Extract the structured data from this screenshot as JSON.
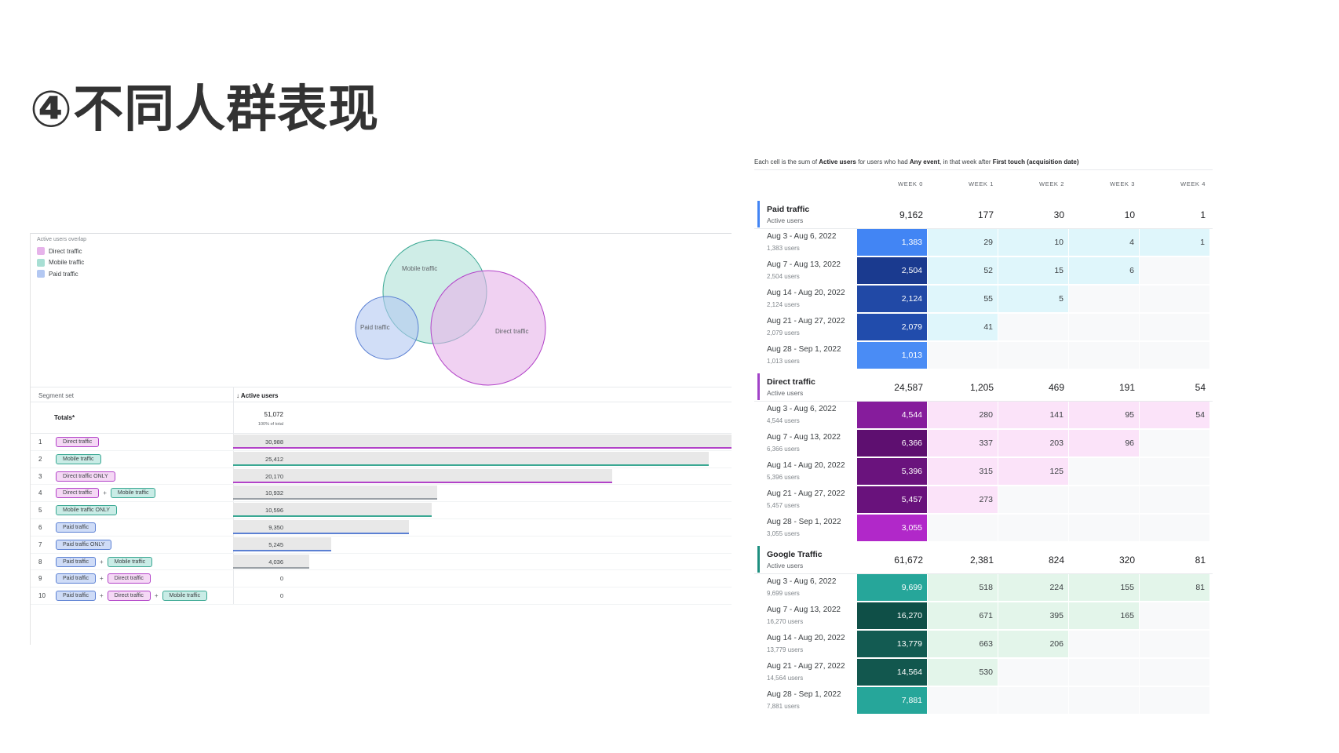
{
  "page_title": "④不同人群表现",
  "overlap": {
    "caption": "Active users overlap",
    "legend": [
      {
        "label": "Direct traffic",
        "color": "#e6b3ea"
      },
      {
        "label": "Mobile traffic",
        "color": "#a8dfd4"
      },
      {
        "label": "Paid traffic",
        "color": "#b3c8f2"
      }
    ],
    "venn_labels": {
      "mobile": "Mobile traffic",
      "paid": "Paid traffic",
      "direct": "Direct traffic"
    },
    "table": {
      "col_segment": "Segment set",
      "col_metric": "↓ Active users",
      "totals_label": "Totals*",
      "totals_value": "51,072",
      "totals_sub": "100% of total",
      "rows": [
        {
          "num": "1",
          "chips": [
            {
              "label": "Direct traffic",
              "kind": "direct"
            }
          ],
          "value": "30,988",
          "bar_frac": 1.0,
          "line": "#b242c8"
        },
        {
          "num": "2",
          "chips": [
            {
              "label": "Mobile traffic",
              "kind": "mobile"
            }
          ],
          "value": "25,412",
          "bar_frac": 0.955,
          "line": "#3aa893"
        },
        {
          "num": "3",
          "chips": [
            {
              "label": "Direct traffic ONLY",
              "kind": "direct"
            }
          ],
          "value": "20,170",
          "bar_frac": 0.76,
          "line": "#b242c8"
        },
        {
          "num": "4",
          "chips": [
            {
              "label": "Direct traffic",
              "kind": "direct"
            },
            {
              "label": "Mobile traffic",
              "kind": "mobile"
            }
          ],
          "value": "10,932",
          "bar_frac": 0.41,
          "line": "#9aa0a6"
        },
        {
          "num": "5",
          "chips": [
            {
              "label": "Mobile traffic ONLY",
              "kind": "mobile"
            }
          ],
          "value": "10,596",
          "bar_frac": 0.398,
          "line": "#3aa893"
        },
        {
          "num": "6",
          "chips": [
            {
              "label": "Paid traffic",
              "kind": "paid"
            }
          ],
          "value": "9,350",
          "bar_frac": 0.352,
          "line": "#5b80d3"
        },
        {
          "num": "7",
          "chips": [
            {
              "label": "Paid traffic ONLY",
              "kind": "paid"
            }
          ],
          "value": "5,245",
          "bar_frac": 0.197,
          "line": "#5b80d3"
        },
        {
          "num": "8",
          "chips": [
            {
              "label": "Paid traffic",
              "kind": "paid"
            },
            {
              "label": "Mobile traffic",
              "kind": "mobile"
            }
          ],
          "value": "4,036",
          "bar_frac": 0.152,
          "line": "#9aa0a6"
        },
        {
          "num": "9",
          "chips": [
            {
              "label": "Paid traffic",
              "kind": "paid"
            },
            {
              "label": "Direct traffic",
              "kind": "direct"
            }
          ],
          "value": "0",
          "bar_frac": 0,
          "line": ""
        },
        {
          "num": "10",
          "chips": [
            {
              "label": "Paid traffic",
              "kind": "paid"
            },
            {
              "label": "Direct traffic",
              "kind": "direct"
            },
            {
              "label": "Mobile traffic",
              "kind": "mobile"
            }
          ],
          "value": "0",
          "bar_frac": 0,
          "line": ""
        }
      ],
      "plus": "+"
    }
  },
  "cohort": {
    "caption_parts": [
      "Each cell is the sum of ",
      "Active users",
      " for users who had ",
      "Any event",
      ", in that week after ",
      "First touch (acquisition date)"
    ],
    "weeks": [
      "WEEK 0",
      "WEEK 1",
      "WEEK 2",
      "WEEK 3",
      "WEEK 4"
    ],
    "groups": [
      {
        "name": "Paid traffic",
        "sub": "Active users",
        "bar": "#4285f4",
        "totals": [
          "9,162",
          "177",
          "30",
          "10",
          "1"
        ],
        "light": "#dff6fb",
        "rows": [
          {
            "label": "Aug 3 - Aug 6, 2022",
            "sub": "1,383 users",
            "cells": [
              "1,383",
              "29",
              "10",
              "4",
              "1"
            ],
            "w0": "#4285f4"
          },
          {
            "label": "Aug 7 - Aug 13, 2022",
            "sub": "2,504 users",
            "cells": [
              "2,504",
              "52",
              "15",
              "6",
              ""
            ],
            "w0": "#1a3a8f"
          },
          {
            "label": "Aug 14 - Aug 20, 2022",
            "sub": "2,124 users",
            "cells": [
              "2,124",
              "55",
              "5",
              "",
              ""
            ],
            "w0": "#2149a6"
          },
          {
            "label": "Aug 21 - Aug 27, 2022",
            "sub": "2,079 users",
            "cells": [
              "2,079",
              "41",
              "",
              "",
              ""
            ],
            "w0": "#214cac"
          },
          {
            "label": "Aug 28 - Sep 1, 2022",
            "sub": "1,013 users",
            "cells": [
              "1,013",
              "",
              "",
              "",
              ""
            ],
            "w0": "#4a8cf5"
          }
        ]
      },
      {
        "name": "Direct traffic",
        "sub": "Active users",
        "bar": "#a142c8",
        "totals": [
          "24,587",
          "1,205",
          "469",
          "191",
          "54"
        ],
        "light": "#fbe3f9",
        "rows": [
          {
            "label": "Aug 3 - Aug 6, 2022",
            "sub": "4,544 users",
            "cells": [
              "4,544",
              "280",
              "141",
              "95",
              "54"
            ],
            "w0": "#861c9c"
          },
          {
            "label": "Aug 7 - Aug 13, 2022",
            "sub": "6,366 users",
            "cells": [
              "6,366",
              "337",
              "203",
              "96",
              ""
            ],
            "w0": "#5e0f70"
          },
          {
            "label": "Aug 14 - Aug 20, 2022",
            "sub": "5,396 users",
            "cells": [
              "5,396",
              "315",
              "125",
              "",
              ""
            ],
            "w0": "#6a137d"
          },
          {
            "label": "Aug 21 - Aug 27, 2022",
            "sub": "5,457 users",
            "cells": [
              "5,457",
              "273",
              "",
              "",
              ""
            ],
            "w0": "#69127c"
          },
          {
            "label": "Aug 28 - Sep 1, 2022",
            "sub": "3,055 users",
            "cells": [
              "3,055",
              "",
              "",
              "",
              ""
            ],
            "w0": "#b128c9"
          }
        ]
      },
      {
        "name": "Google Traffic",
        "sub": "Active users",
        "bar": "#1e8f80",
        "totals": [
          "61,672",
          "2,381",
          "824",
          "320",
          "81"
        ],
        "light": "#e3f5ea",
        "rows": [
          {
            "label": "Aug 3 - Aug 6, 2022",
            "sub": "9,699 users",
            "cells": [
              "9,699",
              "518",
              "224",
              "155",
              "81"
            ],
            "w0": "#26a69a"
          },
          {
            "label": "Aug 7 - Aug 13, 2022",
            "sub": "16,270 users",
            "cells": [
              "16,270",
              "671",
              "395",
              "165",
              ""
            ],
            "w0": "#0f4f47"
          },
          {
            "label": "Aug 14 - Aug 20, 2022",
            "sub": "13,779 users",
            "cells": [
              "13,779",
              "663",
              "206",
              "",
              ""
            ],
            "w0": "#135b52"
          },
          {
            "label": "Aug 21 - Aug 27, 2022",
            "sub": "14,564 users",
            "cells": [
              "14,564",
              "530",
              "",
              "",
              ""
            ],
            "w0": "#12574e"
          },
          {
            "label": "Aug 28 - Sep 1, 2022",
            "sub": "7,881 users",
            "cells": [
              "7,881",
              "",
              "",
              "",
              ""
            ],
            "w0": "#26a69a"
          }
        ]
      }
    ]
  }
}
